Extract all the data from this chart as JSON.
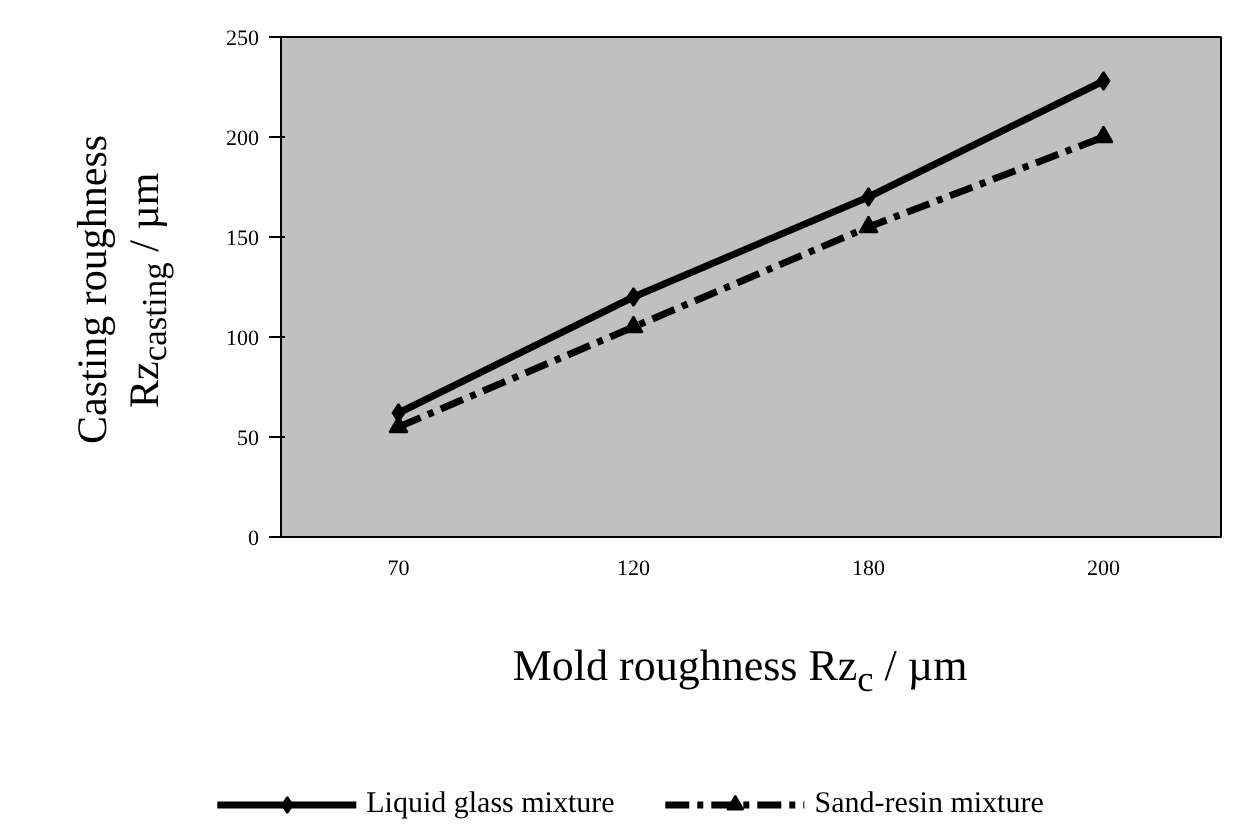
{
  "chart_data": {
    "type": "line",
    "xlabel": "Mold roughness Rz$_{c}$ / µm",
    "ylabel": "Casting roughness\nRz$_{casting}$ / µm",
    "categories": [
      "70",
      "120",
      "180",
      "200"
    ],
    "ylim": [
      0,
      250
    ],
    "yticks": [
      0,
      50,
      100,
      150,
      200,
      250
    ],
    "grid": false,
    "legend": "bottom",
    "series": [
      {
        "name": "Liquid glass mixture",
        "color": "#000000",
        "values": [
          62,
          120,
          170,
          228
        ],
        "marker": "diamond",
        "line_style": "solid"
      },
      {
        "name": "Sand-resin mixture",
        "color": "#000000",
        "values": [
          55,
          105,
          155,
          200
        ],
        "marker": "triangle",
        "line_style": "dashed"
      }
    ]
  }
}
